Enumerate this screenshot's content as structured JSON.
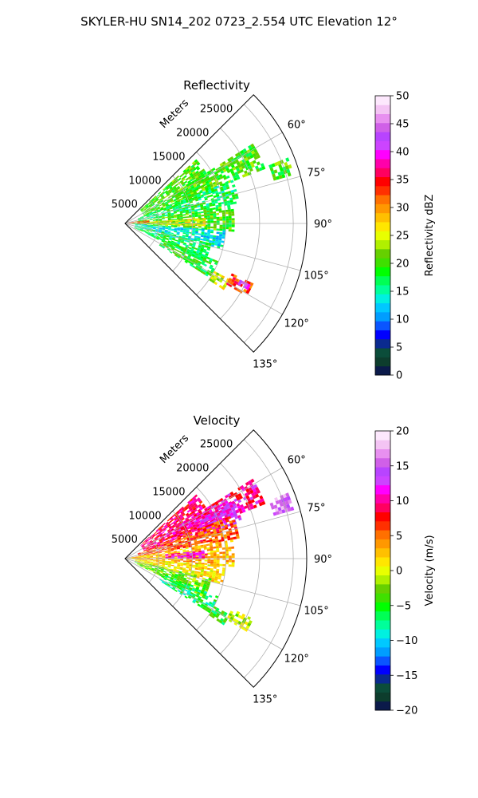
{
  "figure": {
    "title": "SKYLER-HU  SN14_202  0723_2.554 UTC Elevation 12°"
  },
  "chart_data": [
    {
      "type": "heatmap",
      "subtype": "polar-sector-radar-ppi",
      "title": "Reflectivity",
      "range_axis_label": "Meters",
      "range_ticks": [
        5000,
        10000,
        15000,
        20000,
        25000
      ],
      "range_tick_labels": [
        "5000",
        "10000",
        "15000",
        "20000",
        "25000"
      ],
      "range_lim": [
        0,
        27000
      ],
      "azimuth_lim_deg": [
        45,
        135
      ],
      "azimuth_ticks_deg": [
        60,
        75,
        90,
        105,
        120,
        135
      ],
      "azimuth_tick_labels": [
        "60°",
        "75°",
        "90°",
        "105°",
        "120°",
        "135°"
      ],
      "grid": true,
      "colorbar": {
        "label": "Reflectivity dBZ",
        "min": 0,
        "max": 50,
        "ticks": [
          0,
          5,
          10,
          15,
          20,
          25,
          30,
          35,
          40,
          45,
          50
        ],
        "tick_labels": [
          "0",
          "5",
          "10",
          "15",
          "20",
          "25",
          "30",
          "35",
          "40",
          "45",
          "50"
        ],
        "colors": [
          "#0b1a4a",
          "#0d3d2d",
          "#0b4d3a",
          "#0a2a8f",
          "#0000ff",
          "#0a55ff",
          "#009dff",
          "#00c8ff",
          "#00f0e0",
          "#00ff9a",
          "#00ff55",
          "#00ff00",
          "#3fe000",
          "#66d000",
          "#b0f000",
          "#e8ff00",
          "#ffe600",
          "#ffc000",
          "#ff9800",
          "#ff7000",
          "#ff3000",
          "#ff0000",
          "#ff0060",
          "#ff00aa",
          "#ff00ff",
          "#cc44ff",
          "#b844ff",
          "#d060e8",
          "#e890f0",
          "#f4c4f4",
          "#fde8fd"
        ]
      },
      "echo_regions": [
        {
          "az": [
            48,
            70
          ],
          "r": [
            3000,
            14000
          ],
          "value": 20
        },
        {
          "az": [
            58,
            68
          ],
          "r": [
            8000,
            22000
          ],
          "value": 20
        },
        {
          "az": [
            68,
            80
          ],
          "r": [
            2000,
            17000
          ],
          "value": 17
        },
        {
          "az": [
            80,
            94
          ],
          "r": [
            1000,
            16000
          ],
          "value": 20
        },
        {
          "az": [
            86,
            92
          ],
          "r": [
            3000,
            12000
          ],
          "value": 25
        },
        {
          "az": [
            94,
            104
          ],
          "r": [
            1500,
            15000
          ],
          "value": 14
        },
        {
          "az": [
            103,
            116
          ],
          "r": [
            1500,
            13000
          ],
          "value": 17
        },
        {
          "az": [
            112,
            122
          ],
          "r": [
            6000,
            15000
          ],
          "value": 19
        },
        {
          "az": [
            118,
            124
          ],
          "r": [
            15000,
            17500
          ],
          "value": 25
        },
        {
          "az": [
            115,
            120
          ],
          "r": [
            17500,
            21000
          ],
          "value": 33
        },
        {
          "az": [
            116,
            118
          ],
          "r": [
            19000,
            20500
          ],
          "value": 42
        },
        {
          "az": [
            68,
            74
          ],
          "r": [
            23000,
            26000
          ],
          "value": 20
        },
        {
          "az": [
            80,
            90
          ],
          "r": [
            0,
            3500
          ],
          "value": 32
        }
      ]
    },
    {
      "type": "heatmap",
      "subtype": "polar-sector-radar-ppi",
      "title": "Velocity",
      "range_axis_label": "Meters",
      "range_ticks": [
        5000,
        10000,
        15000,
        20000,
        25000
      ],
      "range_tick_labels": [
        "5000",
        "10000",
        "15000",
        "20000",
        "25000"
      ],
      "range_lim": [
        0,
        27000
      ],
      "azimuth_lim_deg": [
        45,
        135
      ],
      "azimuth_ticks_deg": [
        60,
        75,
        90,
        105,
        120,
        135
      ],
      "azimuth_tick_labels": [
        "60°",
        "75°",
        "90°",
        "105°",
        "120°",
        "135°"
      ],
      "grid": true,
      "colorbar": {
        "label": "Velocity (m/s)",
        "min": -20,
        "max": 20,
        "ticks": [
          -20,
          -15,
          -10,
          -5,
          0,
          5,
          10,
          15,
          20
        ],
        "tick_labels": [
          "−20",
          "−15",
          "−10",
          "−5",
          "0",
          "5",
          "10",
          "15",
          "20"
        ],
        "colors": [
          "#0b1a4a",
          "#0d3d2d",
          "#0b4d3a",
          "#0a2a8f",
          "#0000ff",
          "#0a55ff",
          "#009dff",
          "#00c8ff",
          "#00f0e0",
          "#00ff9a",
          "#00ff55",
          "#00ff00",
          "#3fe000",
          "#66d000",
          "#b0f000",
          "#e8ff00",
          "#ffe600",
          "#ffc000",
          "#ff9800",
          "#ff7000",
          "#ff3000",
          "#ff0000",
          "#ff0060",
          "#ff00aa",
          "#ff00ff",
          "#cc44ff",
          "#b844ff",
          "#d060e8",
          "#e890f0",
          "#f4c4f4",
          "#fde8fd"
        ]
      },
      "echo_regions": [
        {
          "az": [
            48,
            70
          ],
          "r": [
            3000,
            14000
          ],
          "value": 9
        },
        {
          "az": [
            58,
            68
          ],
          "r": [
            8000,
            22000
          ],
          "value": 10
        },
        {
          "az": [
            62,
            72
          ],
          "r": [
            12000,
            18000
          ],
          "value": 12
        },
        {
          "az": [
            68,
            80
          ],
          "r": [
            2000,
            17000
          ],
          "value": 6
        },
        {
          "az": [
            80,
            94
          ],
          "r": [
            1000,
            16000
          ],
          "value": 3
        },
        {
          "az": [
            84,
            90
          ],
          "r": [
            6000,
            12000
          ],
          "value": 11
        },
        {
          "az": [
            94,
            104
          ],
          "r": [
            1500,
            15000
          ],
          "value": 1
        },
        {
          "az": [
            103,
            116
          ],
          "r": [
            1500,
            13000
          ],
          "value": -3
        },
        {
          "az": [
            112,
            122
          ],
          "r": [
            6000,
            15000
          ],
          "value": -6
        },
        {
          "az": [
            118,
            124
          ],
          "r": [
            15000,
            17500
          ],
          "value": -5
        },
        {
          "az": [
            115,
            120
          ],
          "r": [
            17500,
            21000
          ],
          "value": -1
        },
        {
          "az": [
            68,
            74
          ],
          "r": [
            23000,
            26000
          ],
          "value": 16
        },
        {
          "az": [
            80,
            90
          ],
          "r": [
            0,
            3500
          ],
          "value": 2
        }
      ]
    }
  ]
}
